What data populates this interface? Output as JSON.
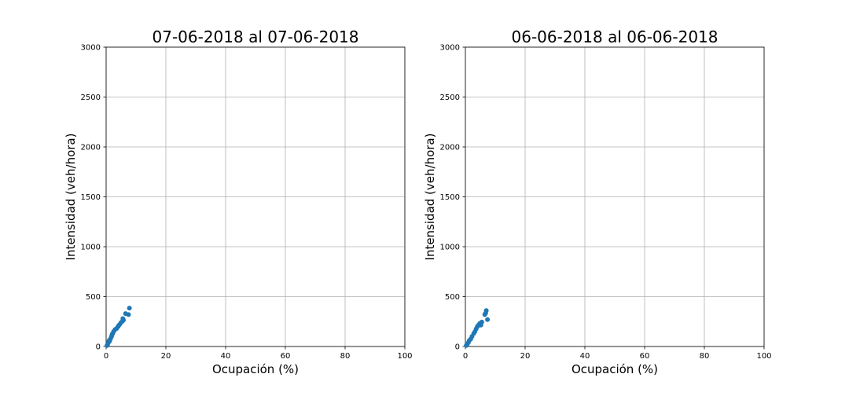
{
  "chart_data": [
    {
      "type": "scatter",
      "title": "07-06-2018 al 07-06-2018",
      "xlabel": "Ocupación (%)",
      "ylabel": "Intensidad (veh/hora)",
      "xlim": [
        0,
        100
      ],
      "ylim": [
        0,
        3000
      ],
      "xticks": [
        "0",
        "20",
        "40",
        "60",
        "80",
        "100"
      ],
      "yticks": [
        "0",
        "500",
        "1000",
        "1500",
        "2000",
        "2500",
        "3000"
      ],
      "grid": true,
      "marker_color": "#1f77b4",
      "points": [
        {
          "x": 0.3,
          "y": 10
        },
        {
          "x": 0.5,
          "y": 20
        },
        {
          "x": 0.8,
          "y": 40
        },
        {
          "x": 1.0,
          "y": 60
        },
        {
          "x": 1.2,
          "y": 55
        },
        {
          "x": 1.5,
          "y": 80
        },
        {
          "x": 1.8,
          "y": 100
        },
        {
          "x": 2.0,
          "y": 120
        },
        {
          "x": 2.2,
          "y": 130
        },
        {
          "x": 2.5,
          "y": 150
        },
        {
          "x": 3.0,
          "y": 170
        },
        {
          "x": 3.5,
          "y": 180
        },
        {
          "x": 4.0,
          "y": 200
        },
        {
          "x": 4.2,
          "y": 210
        },
        {
          "x": 4.5,
          "y": 220
        },
        {
          "x": 5.0,
          "y": 240
        },
        {
          "x": 5.5,
          "y": 255
        },
        {
          "x": 5.6,
          "y": 280
        },
        {
          "x": 5.8,
          "y": 265
        },
        {
          "x": 6.5,
          "y": 330
        },
        {
          "x": 7.5,
          "y": 320
        },
        {
          "x": 7.8,
          "y": 385
        }
      ]
    },
    {
      "type": "scatter",
      "title": "06-06-2018 al 06-06-2018",
      "xlabel": "Ocupación (%)",
      "ylabel": "Intensidad (veh/hora)",
      "xlim": [
        0,
        100
      ],
      "ylim": [
        0,
        3000
      ],
      "xticks": [
        "0",
        "20",
        "40",
        "60",
        "80",
        "100"
      ],
      "yticks": [
        "0",
        "500",
        "1000",
        "1500",
        "2000",
        "2500",
        "3000"
      ],
      "grid": true,
      "marker_color": "#1f77b4",
      "points": [
        {
          "x": 0.3,
          "y": 10
        },
        {
          "x": 0.6,
          "y": 20
        },
        {
          "x": 1.0,
          "y": 40
        },
        {
          "x": 1.3,
          "y": 60
        },
        {
          "x": 1.8,
          "y": 75
        },
        {
          "x": 2.2,
          "y": 100
        },
        {
          "x": 2.8,
          "y": 130
        },
        {
          "x": 3.2,
          "y": 150
        },
        {
          "x": 3.6,
          "y": 175
        },
        {
          "x": 4.0,
          "y": 200
        },
        {
          "x": 4.4,
          "y": 215
        },
        {
          "x": 4.8,
          "y": 230
        },
        {
          "x": 5.2,
          "y": 215
        },
        {
          "x": 5.5,
          "y": 245
        },
        {
          "x": 6.5,
          "y": 320
        },
        {
          "x": 6.8,
          "y": 335
        },
        {
          "x": 7.0,
          "y": 360
        },
        {
          "x": 7.4,
          "y": 270
        }
      ]
    }
  ]
}
